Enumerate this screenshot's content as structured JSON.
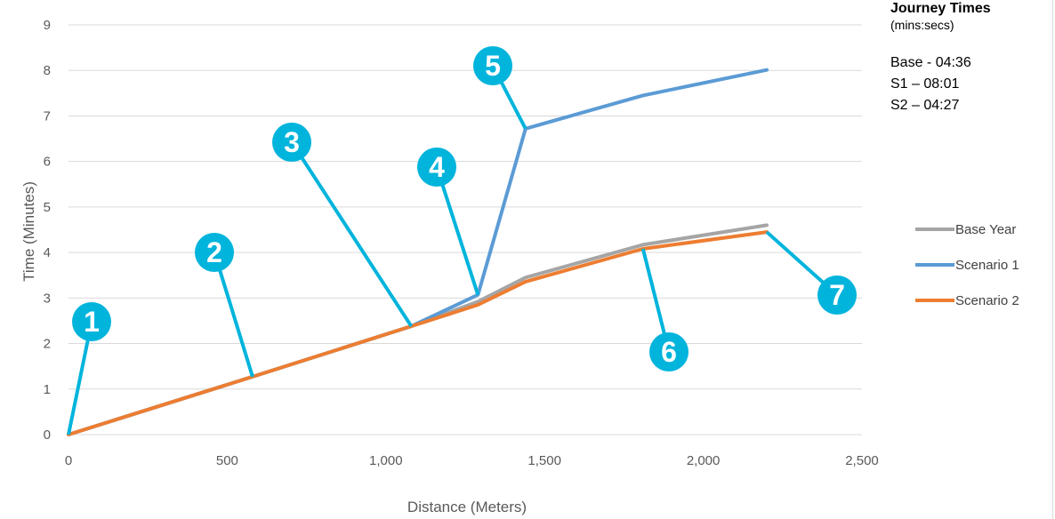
{
  "chart_data": {
    "type": "line",
    "xlabel": "Distance (Meters)",
    "ylabel": "Time (Minutes)",
    "xlim": [
      0,
      2500
    ],
    "ylim": [
      0,
      9
    ],
    "x_ticks": [
      "0",
      "500",
      "1,000",
      "1,500",
      "2,000",
      "2,500"
    ],
    "y_ticks": [
      "0",
      "1",
      "2",
      "3",
      "4",
      "5",
      "6",
      "7",
      "8",
      "9"
    ],
    "grid": "horizontal",
    "legend_position": "right",
    "series": [
      {
        "name": "Base Year",
        "color": "#a5a5a5",
        "x": [
          0,
          580,
          1080,
          1290,
          1440,
          1810,
          2200
        ],
        "y": [
          0,
          1.27,
          2.38,
          2.92,
          3.45,
          4.17,
          4.6
        ]
      },
      {
        "name": "Scenario 1",
        "color": "#5b9bd5",
        "x": [
          0,
          580,
          1080,
          1290,
          1440,
          1810,
          2200
        ],
        "y": [
          0,
          1.27,
          2.38,
          3.07,
          6.72,
          7.45,
          8.01
        ]
      },
      {
        "name": "Scenario 2",
        "color": "#ed7d31",
        "x": [
          0,
          580,
          1080,
          1290,
          1440,
          1810,
          2200
        ],
        "y": [
          0,
          1.27,
          2.38,
          2.85,
          3.36,
          4.08,
          4.45
        ]
      }
    ],
    "annotations": [
      {
        "label": "1",
        "x": 0,
        "y": 0
      },
      {
        "label": "2",
        "x": 580,
        "y": 1.27
      },
      {
        "label": "3",
        "x": 1080,
        "y": 2.38
      },
      {
        "label": "4",
        "x": 1290,
        "y": 3.07
      },
      {
        "label": "5",
        "x": 1440,
        "y": 6.72
      },
      {
        "label": "6",
        "x": 1810,
        "y": 4.08
      },
      {
        "label": "7",
        "x": 2200,
        "y": 4.45
      }
    ],
    "annotation_color": "#00b4dc"
  },
  "journey_times": {
    "title": "Journey Times",
    "subtitle": "(mins:secs)",
    "lines": [
      "Base - 04:36",
      "S1 – 08:01",
      "S2 – 04:27"
    ]
  }
}
